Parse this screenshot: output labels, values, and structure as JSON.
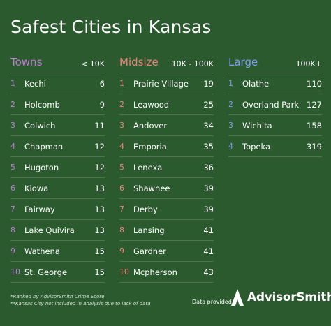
{
  "title": "Safest Cities in Kansas",
  "colors": {
    "background": "#2b5a2f",
    "towns": "#c07ad8",
    "midsize": "#f0807a",
    "large": "#7f9cf5"
  },
  "columns": [
    {
      "name": "Towns",
      "range": "< 10K",
      "rows": [
        {
          "rank": "1",
          "city": "Kechi",
          "value": "6"
        },
        {
          "rank": "2",
          "city": "Holcomb",
          "value": "9"
        },
        {
          "rank": "3",
          "city": "Colwich",
          "value": "11"
        },
        {
          "rank": "4",
          "city": "Chapman",
          "value": "12"
        },
        {
          "rank": "5",
          "city": "Hugoton",
          "value": "12"
        },
        {
          "rank": "6",
          "city": "Kiowa",
          "value": "13"
        },
        {
          "rank": "7",
          "city": "Fairway",
          "value": "13"
        },
        {
          "rank": "8",
          "city": "Lake Quivira",
          "value": "13"
        },
        {
          "rank": "9",
          "city": "Wathena",
          "value": "15"
        },
        {
          "rank": "10",
          "city": "St. George",
          "value": "15"
        }
      ]
    },
    {
      "name": "Midsize",
      "range": "10K - 100K",
      "rows": [
        {
          "rank": "1",
          "city": "Prairie Village",
          "value": "19"
        },
        {
          "rank": "2",
          "city": "Leawood",
          "value": "25"
        },
        {
          "rank": "3",
          "city": "Andover",
          "value": "34"
        },
        {
          "rank": "4",
          "city": "Emporia",
          "value": "35"
        },
        {
          "rank": "5",
          "city": "Lenexa",
          "value": "36"
        },
        {
          "rank": "6",
          "city": "Shawnee",
          "value": "39"
        },
        {
          "rank": "7",
          "city": "Derby",
          "value": "39"
        },
        {
          "rank": "8",
          "city": "Lansing",
          "value": "41"
        },
        {
          "rank": "9",
          "city": "Gardner",
          "value": "41"
        },
        {
          "rank": "10",
          "city": "Mcpherson",
          "value": "43"
        }
      ]
    },
    {
      "name": "Large",
      "range": "100K+",
      "rows": [
        {
          "rank": "1",
          "city": "Olathe",
          "value": "110"
        },
        {
          "rank": "2",
          "city": "Overland Park",
          "value": "127"
        },
        {
          "rank": "3",
          "city": "Wichita",
          "value": "158"
        },
        {
          "rank": "4",
          "city": "Topeka",
          "value": "319"
        }
      ]
    }
  ],
  "footnotes": [
    "*Ranked by AdvisorSmith Crime Score",
    "**Kansas City not included in analysis due to lack of data"
  ],
  "credit": "Data provided by",
  "brand": "AdvisorSmith",
  "brand_icon": "advisorsmith-logo-icon"
}
